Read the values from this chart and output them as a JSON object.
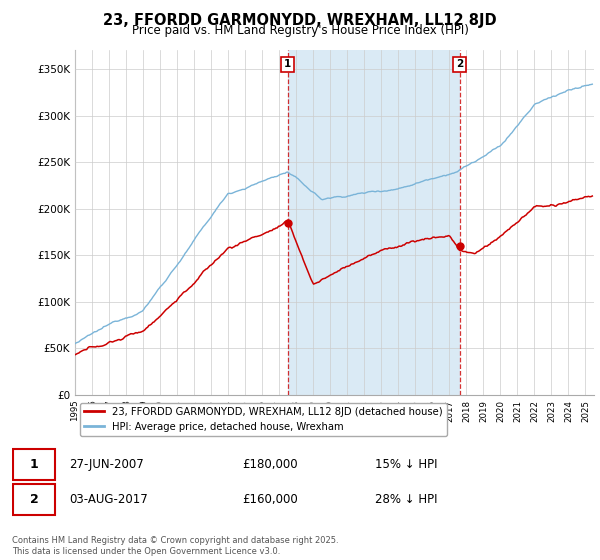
{
  "title": "23, FFORDD GARMONYDD, WREXHAM, LL12 8JD",
  "subtitle": "Price paid vs. HM Land Registry's House Price Index (HPI)",
  "ylabel_ticks": [
    "£0",
    "£50K",
    "£100K",
    "£150K",
    "£200K",
    "£250K",
    "£300K",
    "£350K"
  ],
  "ytick_values": [
    0,
    50000,
    100000,
    150000,
    200000,
    250000,
    300000,
    350000
  ],
  "ylim": [
    0,
    370000
  ],
  "xlim_start": 1995.0,
  "xlim_end": 2025.5,
  "hpi_color": "#7ab4d8",
  "price_color": "#cc0000",
  "shade_color": "#daeaf5",
  "vline1_x": 2007.49,
  "vline2_x": 2017.6,
  "legend_house": "23, FFORDD GARMONYDD, WREXHAM, LL12 8JD (detached house)",
  "legend_hpi": "HPI: Average price, detached house, Wrexham",
  "annotation1_date": "27-JUN-2007",
  "annotation1_price": "£180,000",
  "annotation1_hpi": "15% ↓ HPI",
  "annotation2_date": "03-AUG-2017",
  "annotation2_price": "£160,000",
  "annotation2_hpi": "28% ↓ HPI",
  "footer": "Contains HM Land Registry data © Crown copyright and database right 2025.\nThis data is licensed under the Open Government Licence v3.0.",
  "background_color": "#ffffff",
  "grid_color": "#cccccc",
  "title_fontsize": 10.5,
  "subtitle_fontsize": 8.5,
  "tick_fontsize": 7.5
}
